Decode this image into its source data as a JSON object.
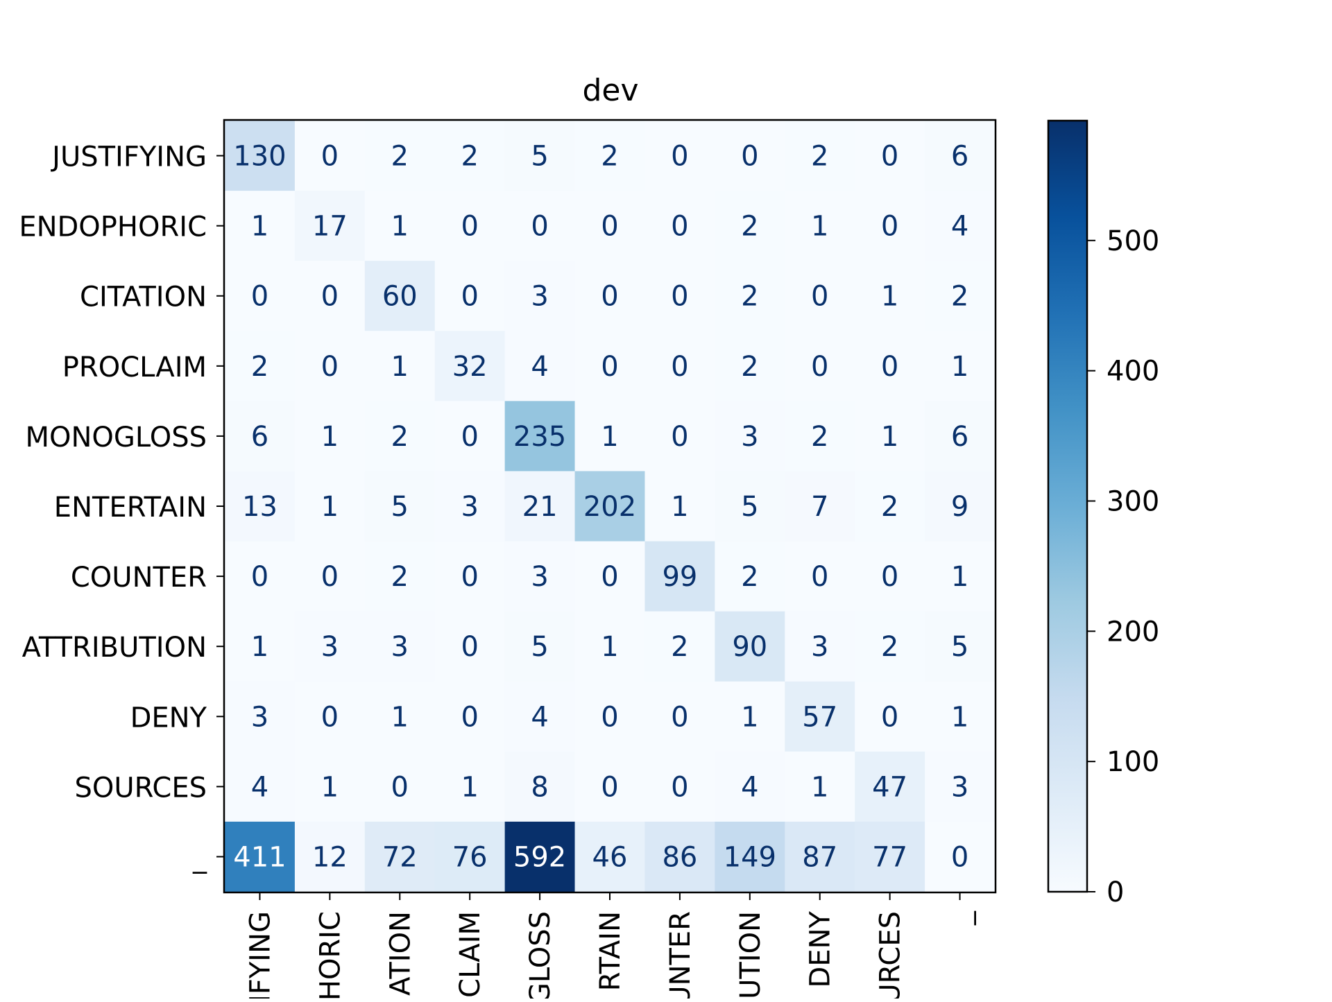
{
  "chart_data": {
    "type": "heatmap",
    "title": "dev",
    "xlabel": "",
    "ylabel": "",
    "row_labels": [
      "JUSTIFYING",
      "ENDOPHORIC",
      "CITATION",
      "PROCLAIM",
      "MONOGLOSS",
      "ENTERTAIN",
      "COUNTER",
      "ATTRIBUTION",
      "DENY",
      "SOURCES",
      "_"
    ],
    "col_labels": [
      "IFYING",
      "HORIC",
      "ATION",
      "CLAIM",
      "GLOSS",
      "RTAIN",
      "UNTER",
      "UTION",
      "DENY",
      "URCES",
      "_"
    ],
    "values": [
      [
        130,
        0,
        2,
        2,
        5,
        2,
        0,
        0,
        2,
        0,
        6
      ],
      [
        1,
        17,
        1,
        0,
        0,
        0,
        0,
        2,
        1,
        0,
        4
      ],
      [
        0,
        0,
        60,
        0,
        3,
        0,
        0,
        2,
        0,
        1,
        2
      ],
      [
        2,
        0,
        1,
        32,
        4,
        0,
        0,
        2,
        0,
        0,
        1
      ],
      [
        6,
        1,
        2,
        0,
        235,
        1,
        0,
        3,
        2,
        1,
        6
      ],
      [
        13,
        1,
        5,
        3,
        21,
        202,
        1,
        5,
        7,
        2,
        9
      ],
      [
        0,
        0,
        2,
        0,
        3,
        0,
        99,
        2,
        0,
        0,
        1
      ],
      [
        1,
        3,
        3,
        0,
        5,
        1,
        2,
        90,
        3,
        2,
        5
      ],
      [
        3,
        0,
        1,
        0,
        4,
        0,
        0,
        1,
        57,
        0,
        1
      ],
      [
        4,
        1,
        0,
        1,
        8,
        0,
        0,
        4,
        1,
        47,
        3
      ],
      [
        411,
        12,
        72,
        76,
        592,
        46,
        86,
        149,
        87,
        77,
        0
      ]
    ],
    "colormap": "Blues",
    "colorbar": {
      "range": [
        0,
        592
      ],
      "ticks": [
        0,
        100,
        200,
        300,
        400,
        500
      ]
    },
    "text_color_dark": "#08306b",
    "text_color_light": "#ffffff",
    "grid": false
  }
}
